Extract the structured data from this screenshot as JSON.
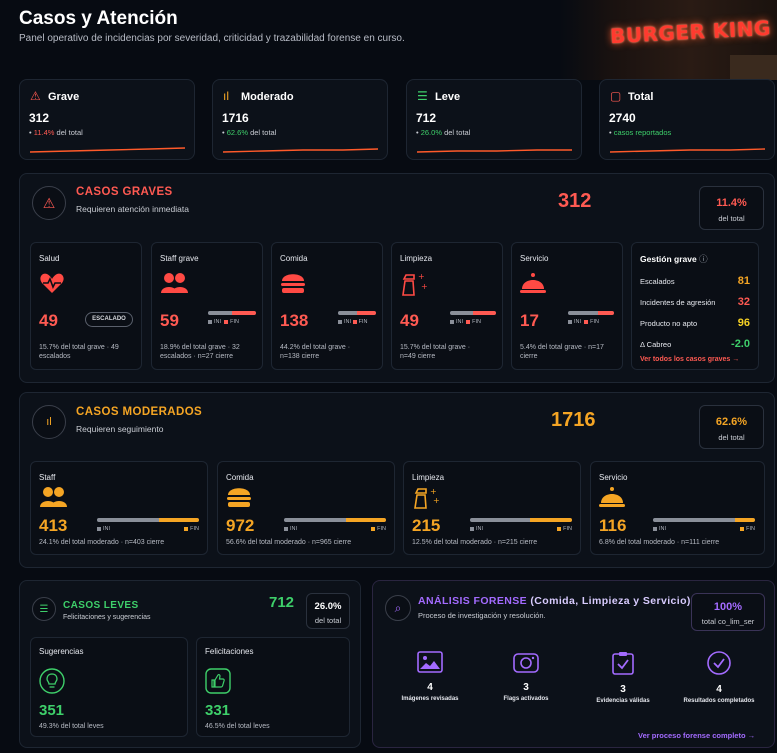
{
  "header": {
    "title": "Casos y Atención",
    "subtitle": "Panel operativo de incidencias por severidad, criticidad y trazabilidad forense en curso."
  },
  "banner": {
    "text": "BURGER KING"
  },
  "stats": [
    {
      "label": "Grave",
      "value": "312",
      "pct": "11.4%",
      "note_suffix": "del total",
      "color": "#ff5a52"
    },
    {
      "label": "Moderado",
      "value": "1716",
      "pct": "62.6%",
      "note_suffix": "del total",
      "color": "#f5a524"
    },
    {
      "label": "Leve",
      "value": "712",
      "pct": "26.0%",
      "note_suffix": "del total",
      "color": "#3ecf6a"
    },
    {
      "label": "Total",
      "value": "2740",
      "pct": "",
      "note_suffix": "casos reportados",
      "color": "#3ecf6a"
    }
  ],
  "graves": {
    "title": "CASOS GRAVES",
    "subtitle": "Requieren atención inmediata",
    "total": "312",
    "pct": "11.4%",
    "pct_label": "del total",
    "cards": [
      {
        "label": "Salud",
        "value": "49",
        "badge": "ESCALADO",
        "note1": "15.7% del total grave · 49",
        "note2": "escalados"
      },
      {
        "label": "Staff grave",
        "value": "59",
        "note1": "18.9% del total grave · 32",
        "note2": "escalados · n=27 cierre"
      },
      {
        "label": "Comida",
        "value": "138",
        "note1": "44.2% del total grave ·",
        "note2": "n=138 cierre"
      },
      {
        "label": "Limpieza",
        "value": "49",
        "note1": "15.7% del total grave ·",
        "note2": "n=49 cierre"
      },
      {
        "label": "Servicio",
        "value": "17",
        "note1": "5.4% del total grave · n=17",
        "note2": "cierre"
      }
    ],
    "gestion": {
      "title": "Gestión grave",
      "rows": [
        {
          "label": "Escalados",
          "value": "81"
        },
        {
          "label": "Incidentes de agresión",
          "value": "32"
        },
        {
          "label": "Producto no apto",
          "value": "96"
        },
        {
          "label": "Δ Cabreo",
          "value": "-2.0"
        }
      ],
      "link": "Ver todos los casos graves →"
    }
  },
  "moderados": {
    "title": "CASOS MODERADOS",
    "subtitle": "Requieren seguimiento",
    "total": "1716",
    "pct": "62.6%",
    "pct_label": "del total",
    "cards": [
      {
        "label": "Staff",
        "value": "413",
        "note": "24.1% del total moderado · n=403 cierre"
      },
      {
        "label": "Comida",
        "value": "972",
        "note": "56.6% del total moderado · n=965 cierre"
      },
      {
        "label": "Limpieza",
        "value": "215",
        "note": "12.5% del total moderado · n=215 cierre"
      },
      {
        "label": "Servicio",
        "value": "116",
        "note": "6.8% del total moderado · n=111 cierre"
      }
    ]
  },
  "leves": {
    "title": "CASOS LEVES",
    "subtitle": "Felicitaciones y sugerencias",
    "total": "712",
    "pct": "26.0%",
    "pct_label": "del total",
    "cards": [
      {
        "label": "Sugerencias",
        "value": "351",
        "note": "49.3% del total leves"
      },
      {
        "label": "Felicitaciones",
        "value": "331",
        "note": "46.5% del total leves"
      }
    ]
  },
  "forense": {
    "title": "ANÁLISIS FORENSE",
    "title_suffix": "(Comida, Limpieza y Servicio)",
    "subtitle": "Proceso de investigación y resolución.",
    "pct": "100%",
    "pct_label": "total co_lim_ser",
    "items": [
      {
        "value": "4",
        "label": "Imágenes revisadas"
      },
      {
        "value": "3",
        "label": "Flags activados"
      },
      {
        "value": "3",
        "label": "Evidencias válidas"
      },
      {
        "value": "4",
        "label": "Resultados completados"
      }
    ],
    "link": "Ver proceso forense completo →"
  },
  "legend": {
    "ini": "INI",
    "fin": "FIN"
  },
  "colors": {
    "grave": "#ff5a52",
    "moderado": "#f5a524",
    "leve": "#3ecf6a",
    "forense": "#a36bff"
  }
}
